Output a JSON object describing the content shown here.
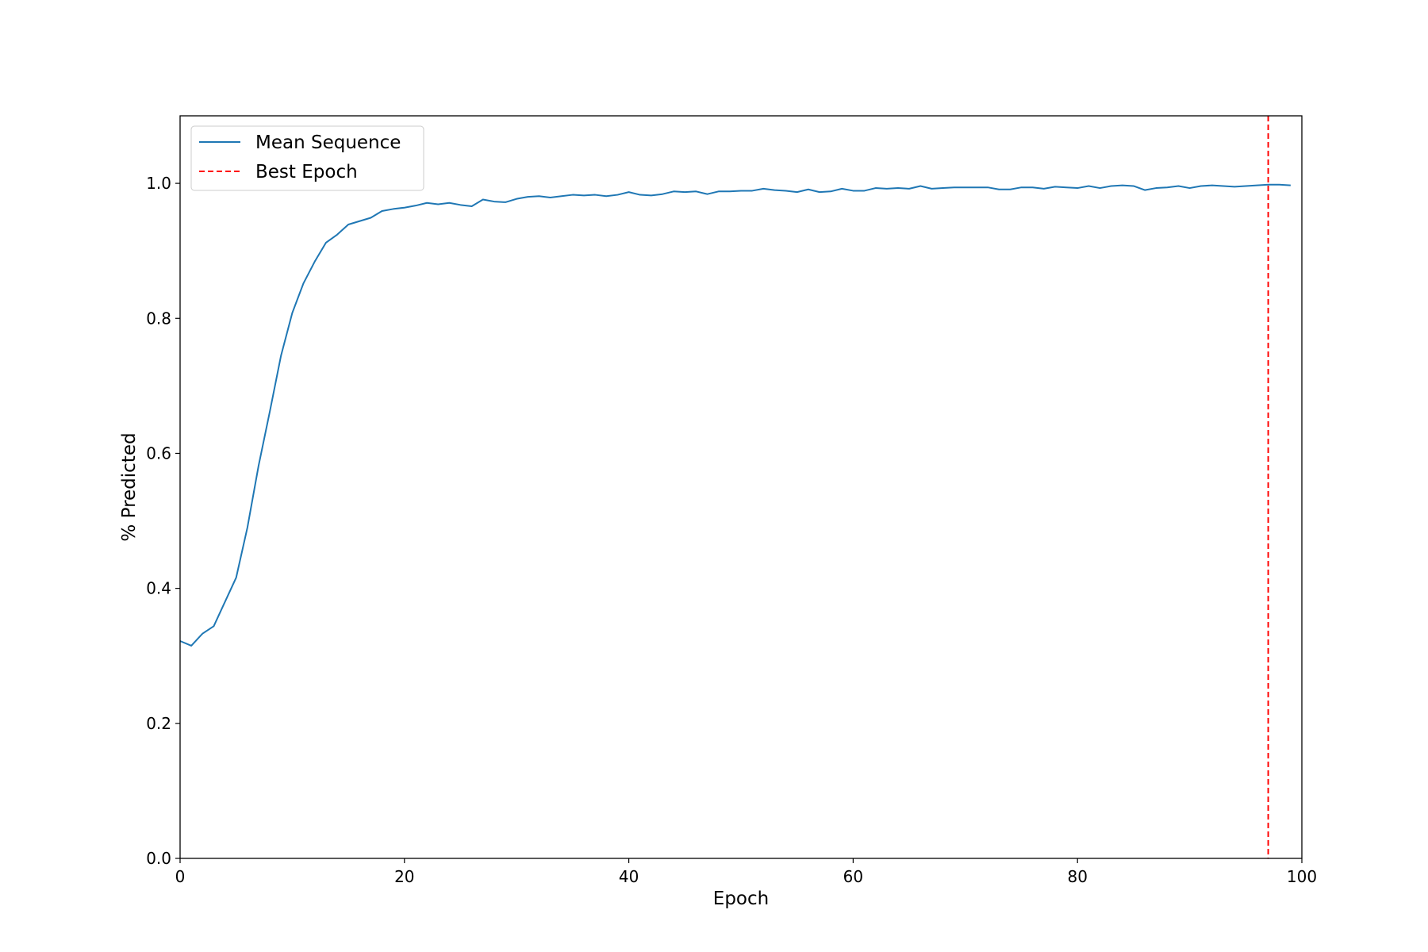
{
  "chart_data": {
    "type": "line",
    "xlabel": "Epoch",
    "ylabel": "% Predicted",
    "xlim": [
      0,
      100
    ],
    "ylim": [
      0,
      1.1
    ],
    "x_ticks": [
      0,
      20,
      40,
      60,
      80,
      100
    ],
    "x_tick_labels": [
      "0",
      "20",
      "40",
      "60",
      "80",
      "100"
    ],
    "y_ticks": [
      0,
      0.2,
      0.4,
      0.6,
      0.8,
      1.0
    ],
    "y_tick_labels": [
      "0.0",
      "0.2",
      "0.4",
      "0.6",
      "0.8",
      "1.0"
    ],
    "grid": false,
    "legend_position": "top-left",
    "series": [
      {
        "name": "Mean Sequence",
        "color": "#1f77b4",
        "style": "solid",
        "x": [
          0,
          1,
          2,
          3,
          4,
          5,
          6,
          7,
          8,
          9,
          10,
          11,
          12,
          13,
          14,
          15,
          16,
          17,
          18,
          19,
          20,
          21,
          22,
          23,
          24,
          25,
          26,
          27,
          28,
          29,
          30,
          31,
          32,
          33,
          34,
          35,
          36,
          37,
          38,
          39,
          40,
          41,
          42,
          43,
          44,
          45,
          46,
          47,
          48,
          49,
          50,
          51,
          52,
          53,
          54,
          55,
          56,
          57,
          58,
          59,
          60,
          61,
          62,
          63,
          64,
          65,
          66,
          67,
          68,
          69,
          70,
          71,
          72,
          73,
          74,
          75,
          76,
          77,
          78,
          79,
          80,
          81,
          82,
          83,
          84,
          85,
          86,
          87,
          88,
          89,
          90,
          91,
          92,
          93,
          94,
          95,
          96,
          97,
          98,
          99
        ],
        "values": [
          0.322,
          0.315,
          0.333,
          0.344,
          0.38,
          0.416,
          0.49,
          0.582,
          0.662,
          0.745,
          0.808,
          0.852,
          0.884,
          0.912,
          0.924,
          0.939,
          0.944,
          0.949,
          0.959,
          0.962,
          0.964,
          0.967,
          0.971,
          0.969,
          0.971,
          0.968,
          0.966,
          0.976,
          0.973,
          0.972,
          0.977,
          0.98,
          0.981,
          0.979,
          0.981,
          0.983,
          0.982,
          0.983,
          0.981,
          0.983,
          0.987,
          0.983,
          0.982,
          0.984,
          0.988,
          0.987,
          0.988,
          0.984,
          0.988,
          0.988,
          0.989,
          0.989,
          0.992,
          0.99,
          0.989,
          0.987,
          0.991,
          0.987,
          0.988,
          0.992,
          0.989,
          0.989,
          0.993,
          0.992,
          0.993,
          0.992,
          0.996,
          0.992,
          0.993,
          0.994,
          0.994,
          0.994,
          0.994,
          0.991,
          0.991,
          0.994,
          0.994,
          0.992,
          0.995,
          0.994,
          0.993,
          0.996,
          0.993,
          0.996,
          0.997,
          0.996,
          0.99,
          0.993,
          0.994,
          0.996,
          0.993,
          0.996,
          0.997,
          0.996,
          0.995,
          0.996,
          0.997,
          0.998,
          0.998,
          0.997
        ]
      },
      {
        "name": "Best Epoch",
        "color": "#ff0000",
        "style": "dashed",
        "type": "vline",
        "x": 97
      }
    ]
  }
}
